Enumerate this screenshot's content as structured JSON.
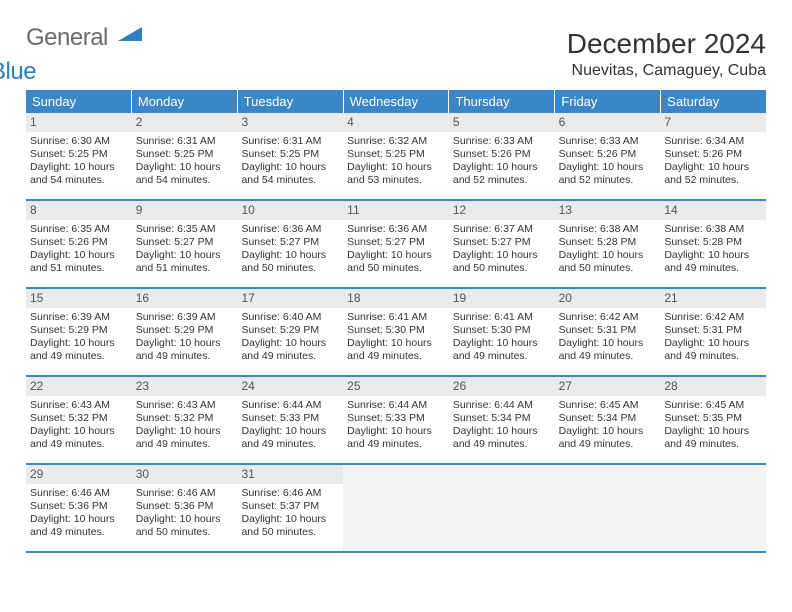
{
  "brand": {
    "part1": "General",
    "part2": "Blue"
  },
  "title": "December 2024",
  "location": "Nuevitas, Camaguey, Cuba",
  "colors": {
    "header_bg": "#3a87c8",
    "header_text": "#ffffff",
    "daynum_bg": "#e8eaec",
    "border": "#3a87c8",
    "empty_bg": "#f3f4f5",
    "text": "#333333",
    "logo_accent": "#2f7ec2"
  },
  "day_names": [
    "Sunday",
    "Monday",
    "Tuesday",
    "Wednesday",
    "Thursday",
    "Friday",
    "Saturday"
  ],
  "first_weekday": 0,
  "days": [
    {
      "n": 1,
      "sr": "6:30 AM",
      "ss": "5:25 PM",
      "dl": "10 hours and 54 minutes."
    },
    {
      "n": 2,
      "sr": "6:31 AM",
      "ss": "5:25 PM",
      "dl": "10 hours and 54 minutes."
    },
    {
      "n": 3,
      "sr": "6:31 AM",
      "ss": "5:25 PM",
      "dl": "10 hours and 54 minutes."
    },
    {
      "n": 4,
      "sr": "6:32 AM",
      "ss": "5:25 PM",
      "dl": "10 hours and 53 minutes."
    },
    {
      "n": 5,
      "sr": "6:33 AM",
      "ss": "5:26 PM",
      "dl": "10 hours and 52 minutes."
    },
    {
      "n": 6,
      "sr": "6:33 AM",
      "ss": "5:26 PM",
      "dl": "10 hours and 52 minutes."
    },
    {
      "n": 7,
      "sr": "6:34 AM",
      "ss": "5:26 PM",
      "dl": "10 hours and 52 minutes."
    },
    {
      "n": 8,
      "sr": "6:35 AM",
      "ss": "5:26 PM",
      "dl": "10 hours and 51 minutes."
    },
    {
      "n": 9,
      "sr": "6:35 AM",
      "ss": "5:27 PM",
      "dl": "10 hours and 51 minutes."
    },
    {
      "n": 10,
      "sr": "6:36 AM",
      "ss": "5:27 PM",
      "dl": "10 hours and 50 minutes."
    },
    {
      "n": 11,
      "sr": "6:36 AM",
      "ss": "5:27 PM",
      "dl": "10 hours and 50 minutes."
    },
    {
      "n": 12,
      "sr": "6:37 AM",
      "ss": "5:27 PM",
      "dl": "10 hours and 50 minutes."
    },
    {
      "n": 13,
      "sr": "6:38 AM",
      "ss": "5:28 PM",
      "dl": "10 hours and 50 minutes."
    },
    {
      "n": 14,
      "sr": "6:38 AM",
      "ss": "5:28 PM",
      "dl": "10 hours and 49 minutes."
    },
    {
      "n": 15,
      "sr": "6:39 AM",
      "ss": "5:29 PM",
      "dl": "10 hours and 49 minutes."
    },
    {
      "n": 16,
      "sr": "6:39 AM",
      "ss": "5:29 PM",
      "dl": "10 hours and 49 minutes."
    },
    {
      "n": 17,
      "sr": "6:40 AM",
      "ss": "5:29 PM",
      "dl": "10 hours and 49 minutes."
    },
    {
      "n": 18,
      "sr": "6:41 AM",
      "ss": "5:30 PM",
      "dl": "10 hours and 49 minutes."
    },
    {
      "n": 19,
      "sr": "6:41 AM",
      "ss": "5:30 PM",
      "dl": "10 hours and 49 minutes."
    },
    {
      "n": 20,
      "sr": "6:42 AM",
      "ss": "5:31 PM",
      "dl": "10 hours and 49 minutes."
    },
    {
      "n": 21,
      "sr": "6:42 AM",
      "ss": "5:31 PM",
      "dl": "10 hours and 49 minutes."
    },
    {
      "n": 22,
      "sr": "6:43 AM",
      "ss": "5:32 PM",
      "dl": "10 hours and 49 minutes."
    },
    {
      "n": 23,
      "sr": "6:43 AM",
      "ss": "5:32 PM",
      "dl": "10 hours and 49 minutes."
    },
    {
      "n": 24,
      "sr": "6:44 AM",
      "ss": "5:33 PM",
      "dl": "10 hours and 49 minutes."
    },
    {
      "n": 25,
      "sr": "6:44 AM",
      "ss": "5:33 PM",
      "dl": "10 hours and 49 minutes."
    },
    {
      "n": 26,
      "sr": "6:44 AM",
      "ss": "5:34 PM",
      "dl": "10 hours and 49 minutes."
    },
    {
      "n": 27,
      "sr": "6:45 AM",
      "ss": "5:34 PM",
      "dl": "10 hours and 49 minutes."
    },
    {
      "n": 28,
      "sr": "6:45 AM",
      "ss": "5:35 PM",
      "dl": "10 hours and 49 minutes."
    },
    {
      "n": 29,
      "sr": "6:46 AM",
      "ss": "5:36 PM",
      "dl": "10 hours and 49 minutes."
    },
    {
      "n": 30,
      "sr": "6:46 AM",
      "ss": "5:36 PM",
      "dl": "10 hours and 50 minutes."
    },
    {
      "n": 31,
      "sr": "6:46 AM",
      "ss": "5:37 PM",
      "dl": "10 hours and 50 minutes."
    }
  ],
  "labels": {
    "sunrise": "Sunrise:",
    "sunset": "Sunset:",
    "daylight": "Daylight:"
  }
}
